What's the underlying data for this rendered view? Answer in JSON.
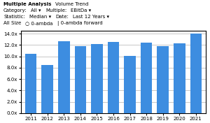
{
  "chart_data": {
    "type": "bar",
    "annotations": [
      [
        "Multiple Analysis",
        "Volume Trend"
      ],
      [
        "Category:",
        "All ▾",
        "Multiple:",
        "EBitDa ▾"
      ],
      [
        "Statistic:",
        "Median ▾",
        "Date:",
        "Last 12 Years ▾"
      ],
      [
        "All Size",
        "○ 0-ambda",
        "| 0-ambda forward"
      ]
    ],
    "categories": [
      "2011",
      "2012",
      "2013",
      "2014",
      "2015",
      "2016",
      "2017",
      "2018",
      "2019",
      "2020",
      "2021"
    ],
    "values": [
      10.5,
      8.5,
      12.6,
      11.8,
      12.2,
      12.5,
      10.1,
      12.4,
      11.8,
      12.3,
      14.0
    ],
    "color": "#3d8de0",
    "ylim": [
      0,
      14.5
    ],
    "yticks": [
      {
        "value": 0,
        "label": "0.0x"
      },
      {
        "value": 2,
        "label": "2.0x"
      },
      {
        "value": 4,
        "label": "4.0x"
      },
      {
        "value": 6,
        "label": "6.0x"
      },
      {
        "value": 8,
        "label": "8.0x"
      },
      {
        "value": 10,
        "label": "10.0x"
      },
      {
        "value": 12,
        "label": "12.0x"
      },
      {
        "value": 14,
        "label": "14.0x"
      }
    ],
    "grid": true
  }
}
